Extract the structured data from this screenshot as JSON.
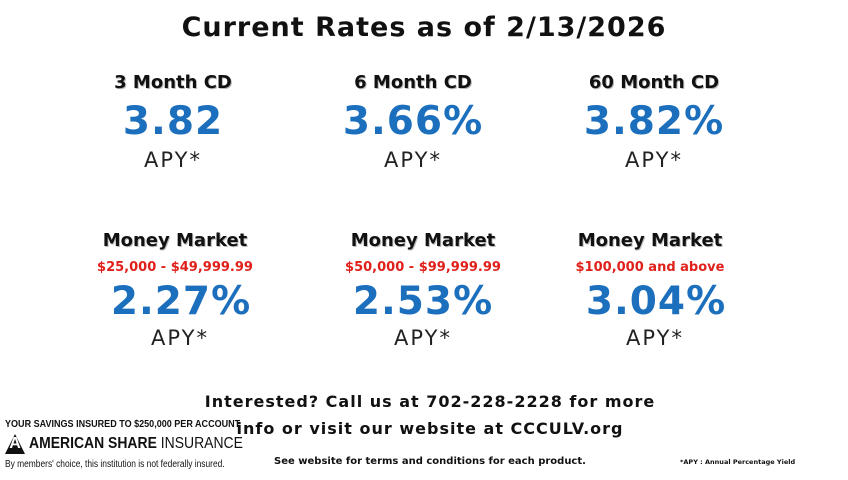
{
  "title": "Current Rates as of 2/13/2026",
  "cd_rates": [
    {
      "product": "3 Month CD",
      "rate": "3.82",
      "apy": "APY*"
    },
    {
      "product": "6 Month CD",
      "rate": "3.66%",
      "apy": "APY*"
    },
    {
      "product": "60 Month CD",
      "rate": "3.82%",
      "apy": "APY*"
    }
  ],
  "money_market": [
    {
      "product": "Money Market",
      "tier": "$25,000 - $49,999.99",
      "rate": "2.27%",
      "apy": "APY*"
    },
    {
      "product": "Money Market",
      "tier": "$50,000 - $99,999.99",
      "rate": "2.53%",
      "apy": "APY*"
    },
    {
      "product": "Money Market",
      "tier": "$100,000 and above",
      "rate": "3.04%",
      "apy": "APY*"
    }
  ],
  "contact": {
    "line1": "Interested? Call us at 702-228-2228 for more",
    "line2": "info or visit our website at CCCULV.org"
  },
  "terms": "See website for terms and conditions for each product.",
  "footnote": "*APY : Annual Percentage Yield",
  "insurance": {
    "top": "YOUR SAVINGS INSURED TO $250,000 PER ACCOUNT",
    "logo_letter": "A",
    "name_bold": "AMERICAN SHARE",
    "name_light": " INSURANCE",
    "bottom": "By members' choice, this institution is not federally insured."
  },
  "colors": {
    "rate": "#1c6fbd",
    "tier": "#e0201b",
    "text": "#111111"
  }
}
